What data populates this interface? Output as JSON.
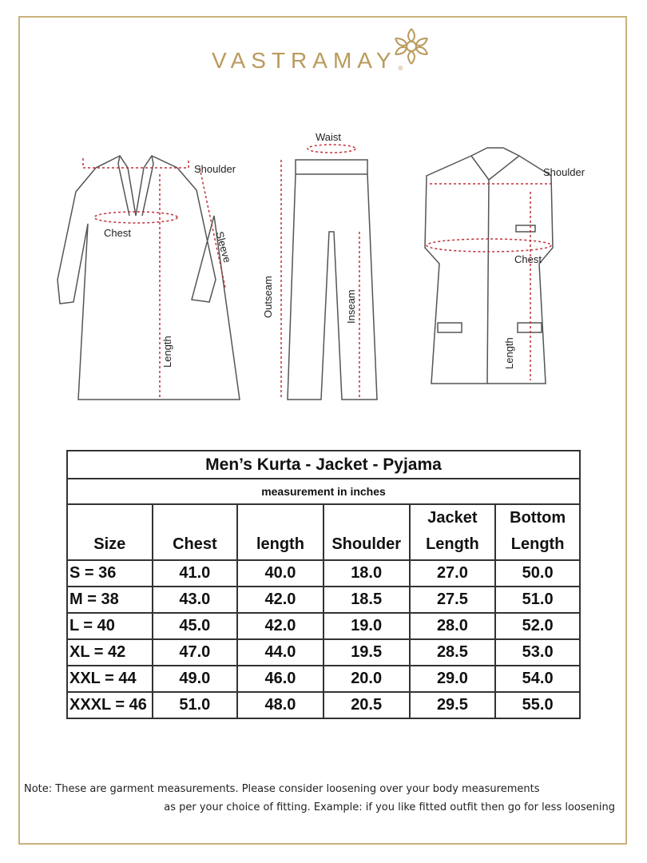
{
  "brand": {
    "name": "VASTRAMAY",
    "registered": "®",
    "color": "#b99a5b"
  },
  "diagrams": {
    "kurta": {
      "shoulder": "Shoulder",
      "chest": "Chest",
      "sleeve": "Sleeve",
      "length": "Length"
    },
    "pyjama": {
      "waist": "Waist",
      "outseam": "Outseam",
      "inseam": "Inseam"
    },
    "jacket": {
      "shoulder": "Shoulder",
      "chest": "Chest",
      "length": "Length"
    }
  },
  "table": {
    "title": "Men’s Kurta - Jacket - Pyjama",
    "subtitle": "measurement in inches",
    "headers": [
      [
        "",
        "Size"
      ],
      [
        "",
        "Chest"
      ],
      [
        "",
        "length"
      ],
      [
        "",
        "Shoulder"
      ],
      [
        "Jacket",
        "Length"
      ],
      [
        "Bottom",
        "Length"
      ]
    ],
    "rows": [
      [
        "S = 36",
        "41.0",
        "40.0",
        "18.0",
        "27.0",
        "50.0"
      ],
      [
        "M = 38",
        "43.0",
        "42.0",
        "18.5",
        "27.5",
        "51.0"
      ],
      [
        "L = 40",
        "45.0",
        "42.0",
        "19.0",
        "28.0",
        "52.0"
      ],
      [
        "XL = 42",
        "47.0",
        "44.0",
        "19.5",
        "28.5",
        "53.0"
      ],
      [
        "XXL = 44",
        "49.0",
        "46.0",
        "20.0",
        "29.0",
        "54.0"
      ],
      [
        "XXXL = 46",
        "51.0",
        "48.0",
        "20.5",
        "29.5",
        "55.0"
      ]
    ]
  },
  "note": {
    "line1": "Note: These are garment measurements. Please consider loosening over your body measurements",
    "line2": "as per your choice of fitting. Example: if you like fitted outfit then go for less loosening"
  }
}
